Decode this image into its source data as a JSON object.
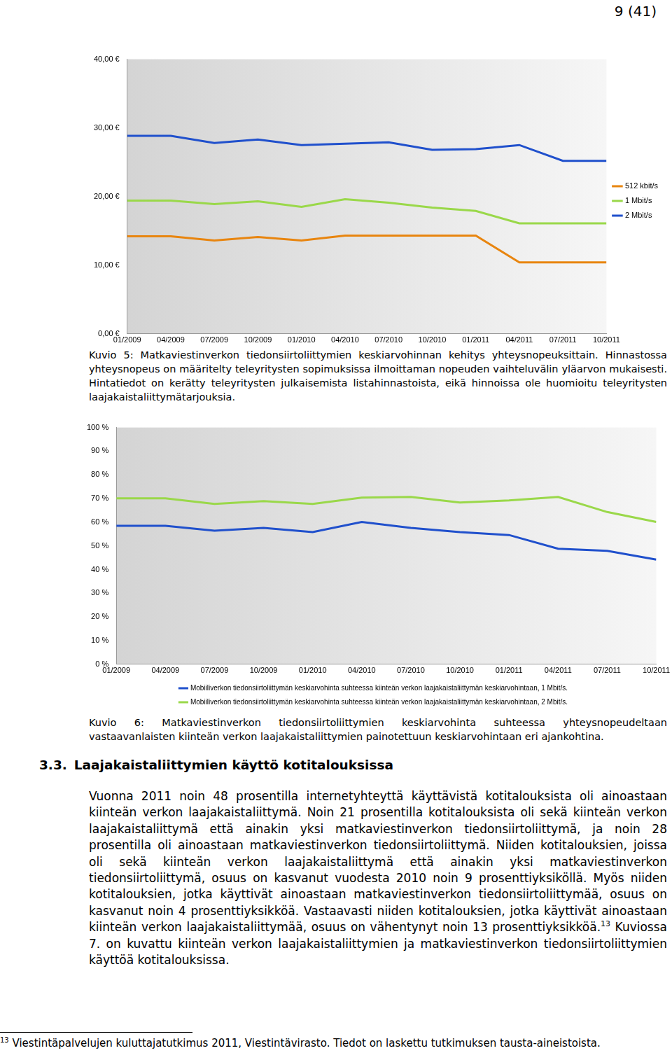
{
  "header": {
    "page": "9 (41)"
  },
  "chart_data": [
    {
      "type": "line",
      "categories": [
        "01/2009",
        "04/2009",
        "07/2009",
        "10/2009",
        "01/2010",
        "04/2010",
        "07/2010",
        "10/2010",
        "01/2011",
        "04/2011",
        "07/2011",
        "10/2011"
      ],
      "series": [
        {
          "name": "512 kbit/s",
          "color": "#e8850f",
          "values": [
            14.2,
            14.2,
            13.6,
            14.1,
            13.6,
            14.3,
            14.3,
            14.3,
            14.3,
            10.4,
            10.4,
            10.4
          ]
        },
        {
          "name": "1 Mbit/s",
          "color": "#9ad84a",
          "values": [
            19.4,
            19.4,
            18.9,
            19.3,
            18.5,
            19.6,
            19.1,
            18.4,
            17.9,
            16.1,
            16.1,
            16.1
          ]
        },
        {
          "name": "2 Mbit/s",
          "color": "#2050cc",
          "values": [
            28.85,
            28.85,
            27.8,
            28.3,
            27.5,
            27.7,
            27.9,
            26.8,
            26.9,
            27.5,
            25.2,
            25.2
          ]
        }
      ],
      "ylim": [
        0,
        40
      ],
      "yticks": [
        {
          "value": 0,
          "label": "0,00 €"
        },
        {
          "value": 10,
          "label": "10,00 €"
        },
        {
          "value": 20,
          "label": "20,00 €"
        },
        {
          "value": 30,
          "label": "30,00 €"
        },
        {
          "value": 40,
          "label": "40,00 €"
        }
      ],
      "grid": false,
      "legend": "right",
      "marker": "none",
      "line_style": "solid"
    },
    {
      "type": "line",
      "categories": [
        "01/2009",
        "04/2009",
        "07/2009",
        "10/2009",
        "01/2010",
        "04/2010",
        "07/2010",
        "10/2010",
        "01/2011",
        "04/2011",
        "07/2011",
        "10/2011"
      ],
      "series": [
        {
          "name": "Mobiiliverkon tiedonsiirtoliittymän keskiarvohinta suhteessa kiinteän verkon laajakaistaliittymän keskiarvohintaan, 1 Mbit/s.",
          "color": "#2050cc",
          "values": [
            58.5,
            58.5,
            56.4,
            57.6,
            55.8,
            60.1,
            57.6,
            55.8,
            54.6,
            48.8,
            47.9,
            44.2
          ]
        },
        {
          "name": "Mobiiliverkon tiedonsiirtoliittymän keskiarvohinta suhteessa kiinteän verkon laajakaistaliittymän keskiarvohintaan, 2 Mbit/s.",
          "color": "#9ad84a",
          "values": [
            70.1,
            70.1,
            67.7,
            68.9,
            67.7,
            70.4,
            70.7,
            68.3,
            69.2,
            70.7,
            64.3,
            60.1
          ]
        }
      ],
      "ylim": [
        0,
        100
      ],
      "yticks": [
        {
          "value": 0,
          "label": "0 %"
        },
        {
          "value": 10,
          "label": "10 %"
        },
        {
          "value": 20,
          "label": "20 %"
        },
        {
          "value": 30,
          "label": "30 %"
        },
        {
          "value": 40,
          "label": "40 %"
        },
        {
          "value": 50,
          "label": "50 %"
        },
        {
          "value": 60,
          "label": "60 %"
        },
        {
          "value": 70,
          "label": "70 %"
        },
        {
          "value": 80,
          "label": "80 %"
        },
        {
          "value": 90,
          "label": "90 %"
        },
        {
          "value": 100,
          "label": "100 %"
        }
      ],
      "grid": false,
      "legend": "bottom",
      "marker": "none",
      "line_style": "solid"
    }
  ],
  "captions": [
    "Kuvio 5: Matkaviestinverkon tiedonsiirtoliittymien keskiarvohinnan kehitys yhteysnopeuksittain. Hinnastossa yhteysnopeus on määritelty teleyritysten sopimuksissa ilmoittaman nopeuden vaihteluvälin yläarvon mukaisesti. Hintatiedot on kerätty teleyritysten julkaisemista listahinnastoista, eikä hinnoissa ole huomioitu teleyritysten laajakaistaliittymätarjouksia.",
    "Kuvio 6: Matkaviestinverkon tiedonsiirtoliittymien keskiarvohinta suhteessa yhteysnopeudeltaan vastaavanlaisten kiinteän verkon laajakaistaliittymien painotettuun keskiarvohintaan eri ajankohtina."
  ],
  "section": {
    "number": "3.3.",
    "title": "Laajakaistaliittymien käyttö kotitalouksissa"
  },
  "paragraph": {
    "text": "Vuonna 2011 noin 48 prosentilla internetyhteyttä käyttävistä kotitalouksista oli ainoastaan kiinteän verkon laajakaistaliittymä. Noin 21 prosentilla kotitalouksista oli sekä kiinteän verkon laajakaistaliittymä että ainakin yksi matkaviestinverkon tiedonsiirtoliittymä, ja noin 28 prosentilla oli ainoastaan matkaviestinverkon tiedonsiirtoliittymä. Niiden kotitalouksien, joissa oli sekä kiinteän verkon laajakaistaliittymä että ainakin yksi matkaviestinverkon tiedonsiirtoliittymä, osuus on kasvanut vuodesta 2010 noin 9 prosenttiyksiköllä. Myös niiden kotitalouksien, jotka käyttivät ainoastaan matkaviestinverkon tiedonsiirtoliittymää, osuus on kasvanut noin 4 prosenttiyksikköä. Vastaavasti niiden kotitalouksien, jotka käyttivät ainoastaan kiinteän verkon laajakaistaliittymää, osuus on vähentynyt noin 13 prosenttiyksikköä.",
    "footnote_ref": "13",
    "text_after": " Kuviossa 7. on kuvattu kiinteän verkon laajakaistaliittymien ja matkaviestinverkon tiedonsiirtoliittymien käyttöä kotitalouksissa."
  },
  "footnote": {
    "number": "13",
    "text": "Viestintäpalvelujen kuluttajatutkimus 2011, Viestintävirasto. Tiedot on laskettu tutkimuksen tausta-aineistoista."
  }
}
